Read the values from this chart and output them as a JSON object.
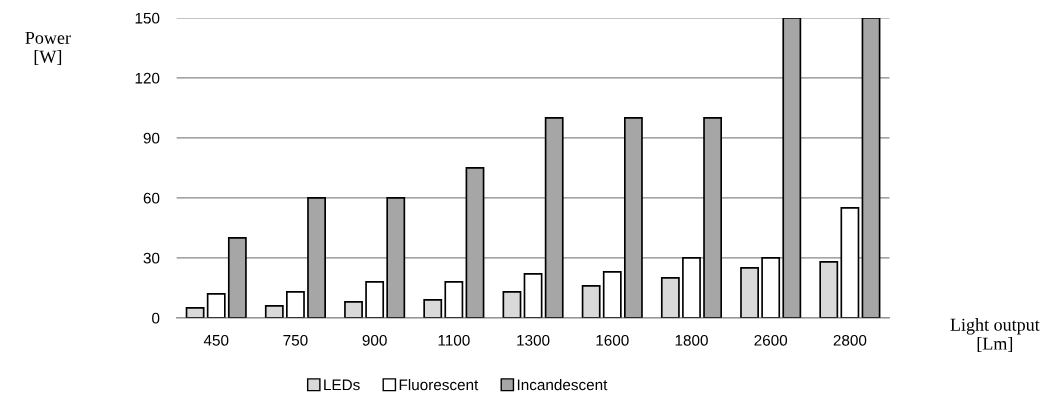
{
  "chart_data": {
    "type": "bar",
    "xlabel": "Light output\n[Lm]",
    "ylabel": "Power\n[W]",
    "categories": [
      "450",
      "750",
      "900",
      "1100",
      "1300",
      "1600",
      "1800",
      "2600",
      "2800"
    ],
    "series": [
      {
        "name": "LEDs",
        "color": "#d9d9d9",
        "values": [
          5,
          6,
          8,
          9,
          13,
          16,
          20,
          25,
          28
        ]
      },
      {
        "name": "Fluorescent",
        "color": "#ffffff",
        "values": [
          12,
          13,
          18,
          18,
          22,
          23,
          30,
          30,
          55
        ]
      },
      {
        "name": "Incandescent",
        "color": "#a6a6a6",
        "values": [
          40,
          60,
          60,
          75,
          100,
          100,
          100,
          150,
          150
        ]
      }
    ],
    "ylim": [
      0,
      150
    ],
    "yticks": [
      0,
      30,
      60,
      90,
      120,
      150
    ],
    "grid": "y",
    "legend": "bottom"
  }
}
